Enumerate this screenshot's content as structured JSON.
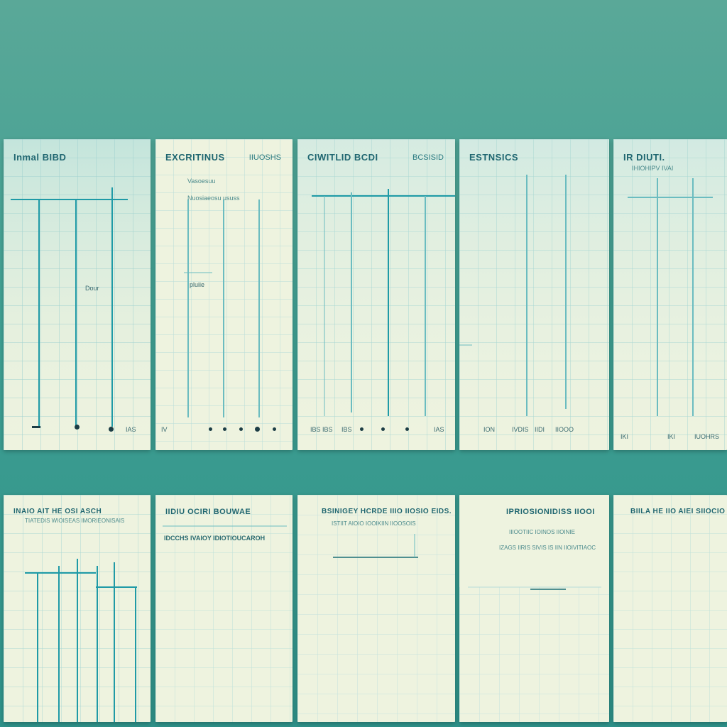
{
  "sheets_top": [
    {
      "title": "Inmal BIBD",
      "right": "",
      "sub1": "",
      "sub2": "",
      "mid": "Dour",
      "footer": [
        "IAS"
      ]
    },
    {
      "title": "EXCRITINUS",
      "right": "IIUOSHS",
      "sub1": "Vasoesuu",
      "sub2": "Nuosiaeosu ususs",
      "mid": "pluiie",
      "footer": [
        "IV"
      ]
    },
    {
      "title": "CIWITLID BCDI",
      "right": "BCSISID",
      "sub1": "",
      "sub2": "",
      "mid": "",
      "footer": [
        "IBS IBS",
        "IBS",
        "IAS"
      ]
    },
    {
      "title": "ESTNSICS",
      "right": "",
      "sub1": "",
      "sub2": "",
      "mid": "",
      "footer": [
        "ION",
        "IVDIS",
        "IIDI",
        "IIOOO"
      ]
    },
    {
      "title": "IR DIUTI.",
      "right": "",
      "sub1": "IHIOHIPV IVAI",
      "sub2": "",
      "mid": "",
      "footer": [
        "IKI",
        "IKI",
        "IUOHRS"
      ]
    }
  ],
  "sheets_bottom": [
    {
      "title": "INAIO AIT HE OSI ASCH",
      "sub1": "TIATEDIS WIOISEAS IMORIEONISAIS",
      "sub2": ""
    },
    {
      "title": "IIDIU OCIRI BOUWAE",
      "sub1": "IDCCHS IVAIOY IDIOTIOUCAROH",
      "sub2": ""
    },
    {
      "title": "BSINIGEY HCRDE IIIO IIOSIO EIDS.",
      "sub1": "ISTIIT AIOIO IOOIKIIN IIOOSOIS",
      "sub2": ""
    },
    {
      "title": "IPRIOSIONIDISS IIOOI",
      "sub1": "IIIOOTIIC IOINOS IIOINIE",
      "sub2": "IZAGS IIRIS SIVIS IS IIN IIOIVITIAOC"
    },
    {
      "title": "BIILA HE IIO AIEI SIIOCIO",
      "sub1": "",
      "sub2": ""
    }
  ],
  "colors": {
    "line": "#6bbcc0",
    "accent": "#1f9aa6",
    "paper": "#eef3df"
  }
}
